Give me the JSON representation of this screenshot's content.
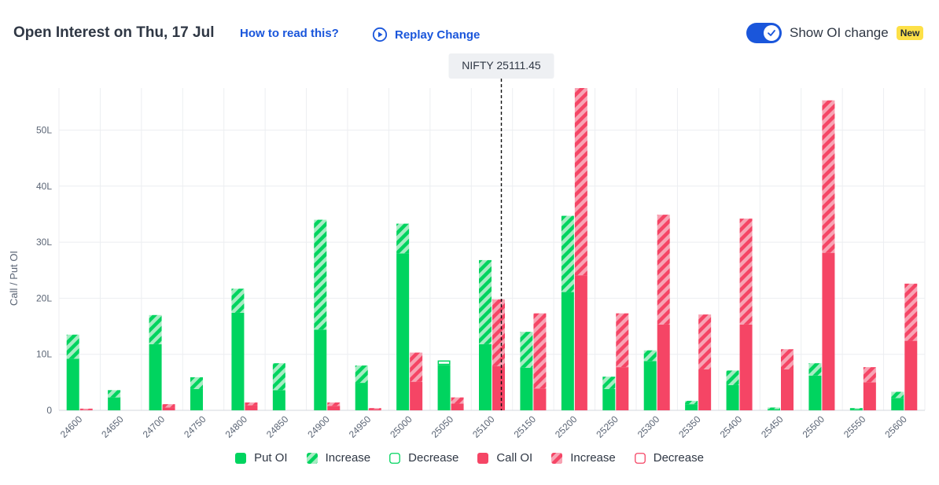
{
  "header": {
    "title": "Open Interest on Thu, 17 Jul",
    "how_to_read": "How to read this?",
    "replay": "Replay Change",
    "toggle_label": "Show OI change",
    "toggle_on": true,
    "badge": "New"
  },
  "colors": {
    "put": "#00d45f",
    "put_light": "#a7ecc3",
    "call": "#f54565",
    "call_light": "#f7a4b4",
    "accent": "#1a56db",
    "badge": "#fde047"
  },
  "legend": [
    {
      "label": "Put OI",
      "kind": "put-solid"
    },
    {
      "label": "Increase",
      "kind": "put-stripe"
    },
    {
      "label": "Decrease",
      "kind": "put-outline"
    },
    {
      "label": "Call OI",
      "kind": "call-solid"
    },
    {
      "label": "Increase",
      "kind": "call-stripe"
    },
    {
      "label": "Decrease",
      "kind": "call-outline"
    }
  ],
  "chart_data": {
    "type": "bar",
    "ylabel": "Call / Put OI",
    "yticks": [
      "0",
      "10L",
      "20L",
      "30L",
      "40L",
      "50L"
    ],
    "ylim": [
      0,
      57.5
    ],
    "spot_label": "NIFTY 25111.45",
    "spot_value": 25111.45,
    "grid": true,
    "legend_position": "bottom",
    "categories": [
      "24600",
      "24650",
      "24700",
      "24750",
      "24800",
      "24850",
      "24900",
      "24950",
      "25000",
      "25050",
      "25100",
      "25150",
      "25200",
      "25250",
      "25300",
      "25350",
      "25400",
      "25450",
      "25500",
      "25550",
      "25600"
    ],
    "series": [
      {
        "name": "Put OI",
        "base": [
          9.2,
          2.3,
          11.8,
          3.8,
          17.4,
          3.6,
          14.4,
          4.9,
          28.0,
          8.1,
          11.8,
          7.6,
          21.1,
          3.8,
          8.8,
          1.1,
          4.5,
          0.2,
          6.2,
          0.2,
          2.2
        ],
        "increase": [
          4.3,
          1.3,
          5.2,
          2.1,
          4.3,
          4.8,
          19.6,
          3.1,
          5.3,
          0,
          15.0,
          6.4,
          13.6,
          2.2,
          1.9,
          0.6,
          2.6,
          0.3,
          2.2,
          0.2,
          1.1
        ],
        "decrease": [
          0,
          0,
          0,
          0,
          0,
          0,
          0,
          0,
          0,
          0.8,
          0,
          0,
          0,
          0,
          0,
          0,
          0,
          0,
          0,
          0,
          0
        ]
      },
      {
        "name": "Call OI",
        "base": [
          0.1,
          0,
          0.5,
          0,
          0.9,
          0,
          0.8,
          0.2,
          5.1,
          1.2,
          7.9,
          3.9,
          24.1,
          7.7,
          15.3,
          7.3,
          15.3,
          7.3,
          28.1,
          5.0,
          12.4
        ],
        "increase": [
          0.2,
          0,
          0.6,
          0,
          0.5,
          0,
          0.6,
          0.2,
          5.2,
          1.1,
          11.9,
          13.4,
          33.4,
          9.6,
          19.6,
          9.8,
          18.9,
          3.6,
          27.2,
          2.7,
          10.2
        ],
        "decrease": [
          0,
          0,
          0,
          0,
          0,
          0,
          0,
          0,
          0,
          0,
          0,
          0,
          0,
          0,
          0,
          0,
          0,
          0,
          0,
          0,
          0
        ]
      }
    ]
  }
}
